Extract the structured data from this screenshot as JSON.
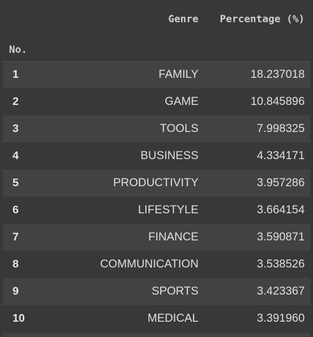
{
  "table": {
    "columns": [
      "Genre",
      "Percentage (%)"
    ],
    "index_name": "No.",
    "rows": [
      {
        "no": "1",
        "genre": "FAMILY",
        "pct": "18.237018"
      },
      {
        "no": "2",
        "genre": "GAME",
        "pct": "10.845896"
      },
      {
        "no": "3",
        "genre": "TOOLS",
        "pct": "7.998325"
      },
      {
        "no": "4",
        "genre": "BUSINESS",
        "pct": "4.334171"
      },
      {
        "no": "5",
        "genre": "PRODUCTIVITY",
        "pct": "3.957286"
      },
      {
        "no": "6",
        "genre": "LIFESTYLE",
        "pct": "3.664154"
      },
      {
        "no": "7",
        "genre": "FINANCE",
        "pct": "3.590871"
      },
      {
        "no": "8",
        "genre": "COMMUNICATION",
        "pct": "3.538526"
      },
      {
        "no": "9",
        "genre": "SPORTS",
        "pct": "3.423367"
      },
      {
        "no": "10",
        "genre": "MEDICAL",
        "pct": "3.391960"
      }
    ]
  },
  "colors": {
    "background": "#383838",
    "row_alt": "#424242",
    "text": "#e0e0e0"
  }
}
